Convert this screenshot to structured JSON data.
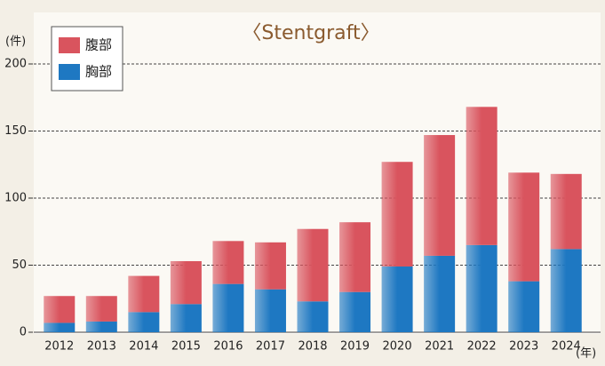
{
  "chart_data": {
    "type": "stacked_bar",
    "title": "〈Stentgraft〉",
    "y_unit": "(件)",
    "x_unit": "(年)",
    "categories": [
      "2012",
      "2013",
      "2014",
      "2015",
      "2016",
      "2017",
      "2018",
      "2019",
      "2020",
      "2021",
      "2022",
      "2023",
      "2024"
    ],
    "series": [
      {
        "name": "腹部",
        "color": "#d9545e",
        "values": [
          20,
          19,
          27,
          32,
          32,
          35,
          54,
          52,
          78,
          90,
          103,
          81,
          56
        ]
      },
      {
        "name": "胸部",
        "color": "#1e78c2",
        "values": [
          7,
          8,
          15,
          21,
          36,
          32,
          23,
          30,
          49,
          57,
          65,
          38,
          62
        ]
      }
    ],
    "ylim": [
      0,
      200
    ],
    "yticks": [
      0,
      50,
      100,
      150,
      200
    ],
    "grid": true,
    "legend": "top-left"
  }
}
